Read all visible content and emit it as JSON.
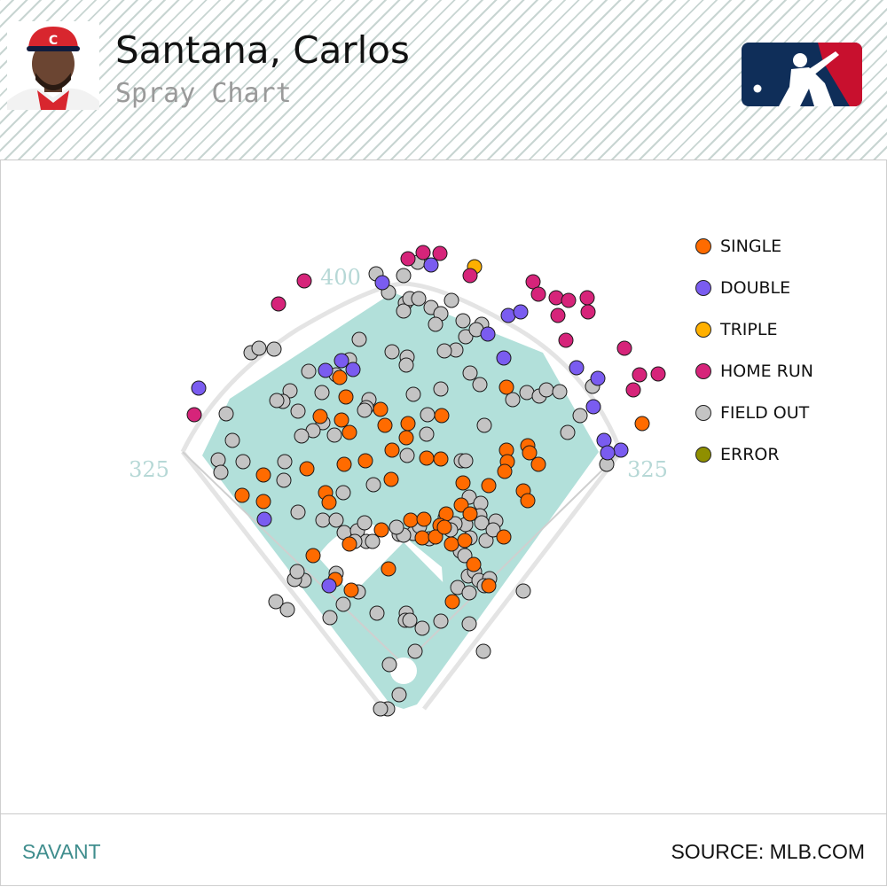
{
  "header": {
    "player_name": "Santana, Carlos",
    "subtitle": "Spray Chart",
    "logo": "mlb-logo",
    "photo": "player-headshot"
  },
  "footer": {
    "left_text": "SAVANT",
    "right_text": "SOURCE: MLB.COM"
  },
  "colors": {
    "field_fill": "#b2e0da",
    "infield_fill": "#ffffff",
    "single": "#ff6b00",
    "double": "#7a5cf0",
    "triple": "#ffb000",
    "home_run": "#d6247a",
    "field_out": "#c4c4c4",
    "error": "#8f8f00",
    "accent": "#3f8d8d"
  },
  "chart_data": {
    "type": "scatter",
    "title": "Spray Chart",
    "field_labels": {
      "left": "325",
      "center": "400",
      "right": "325"
    },
    "legend_placement": "top-right",
    "legend": [
      {
        "key": "single",
        "label": "SINGLE"
      },
      {
        "key": "double",
        "label": "DOUBLE"
      },
      {
        "key": "triple",
        "label": "TRIPLE"
      },
      {
        "key": "home_run",
        "label": "HOME RUN"
      },
      {
        "key": "field_out",
        "label": "FIELD OUT"
      },
      {
        "key": "error",
        "label": "ERROR"
      }
    ],
    "series": [
      {
        "key": "single",
        "points": [
          [
            383,
            426
          ],
          [
            390,
            448
          ],
          [
            429,
            462
          ],
          [
            385,
            474
          ],
          [
            361,
            470
          ],
          [
            394,
            488
          ],
          [
            434,
            480
          ],
          [
            460,
            478
          ],
          [
            458,
            494
          ],
          [
            442,
            508
          ],
          [
            412,
            520
          ],
          [
            346,
            529
          ],
          [
            297,
            536
          ],
          [
            273,
            559
          ],
          [
            297,
            566
          ],
          [
            367,
            556
          ],
          [
            371,
            567
          ],
          [
            441,
            541
          ],
          [
            388,
            524
          ],
          [
            481,
            517
          ],
          [
            497,
            518
          ],
          [
            498,
            469
          ],
          [
            571,
            437
          ],
          [
            571,
            508
          ],
          [
            572,
            521
          ],
          [
            595,
            503
          ],
          [
            597,
            511
          ],
          [
            607,
            524
          ],
          [
            569,
            532
          ],
          [
            551,
            548
          ],
          [
            590,
            554
          ],
          [
            595,
            565
          ],
          [
            522,
            545
          ],
          [
            520,
            570
          ],
          [
            503,
            580
          ],
          [
            463,
            587
          ],
          [
            478,
            586
          ],
          [
            496,
            593
          ],
          [
            476,
            607
          ],
          [
            491,
            606
          ],
          [
            509,
            614
          ],
          [
            501,
            595
          ],
          [
            530,
            580
          ],
          [
            568,
            606
          ],
          [
            524,
            610
          ],
          [
            430,
            598
          ],
          [
            394,
            614
          ],
          [
            353,
            627
          ],
          [
            378,
            654
          ],
          [
            396,
            666
          ],
          [
            438,
            642
          ],
          [
            534,
            637
          ],
          [
            551,
            661
          ],
          [
            510,
            679
          ],
          [
            724,
            478
          ]
        ]
      },
      {
        "key": "double",
        "points": [
          [
            224,
            438
          ],
          [
            298,
            586
          ],
          [
            367,
            418
          ],
          [
            385,
            407
          ],
          [
            398,
            417
          ],
          [
            371,
            661
          ],
          [
            431,
            319
          ],
          [
            486,
            299
          ],
          [
            550,
            377
          ],
          [
            568,
            404
          ],
          [
            573,
            356
          ],
          [
            587,
            352
          ],
          [
            650,
            415
          ],
          [
            674,
            427
          ],
          [
            669,
            459
          ],
          [
            681,
            497
          ],
          [
            700,
            508
          ],
          [
            685,
            511
          ]
        ]
      },
      {
        "key": "triple",
        "points": [
          [
            535,
            301
          ]
        ]
      },
      {
        "key": "home_run",
        "points": [
          [
            219,
            468
          ],
          [
            314,
            343
          ],
          [
            343,
            317
          ],
          [
            460,
            292
          ],
          [
            477,
            285
          ],
          [
            496,
            286
          ],
          [
            530,
            311
          ],
          [
            601,
            318
          ],
          [
            607,
            332
          ],
          [
            627,
            336
          ],
          [
            641,
            339
          ],
          [
            662,
            336
          ],
          [
            663,
            352
          ],
          [
            629,
            356
          ],
          [
            638,
            384
          ],
          [
            704,
            393
          ],
          [
            721,
            423
          ],
          [
            742,
            422
          ],
          [
            714,
            440
          ]
        ]
      },
      {
        "key": "field_out",
        "points": [
          [
            283,
            398
          ],
          [
            292,
            393
          ],
          [
            309,
            394
          ],
          [
            348,
            419
          ],
          [
            327,
            441
          ],
          [
            319,
            453
          ],
          [
            312,
            452
          ],
          [
            336,
            464
          ],
          [
            363,
            443
          ],
          [
            364,
            477
          ],
          [
            353,
            486
          ],
          [
            340,
            492
          ],
          [
            377,
            491
          ],
          [
            394,
            406
          ],
          [
            405,
            383
          ],
          [
            379,
            423
          ],
          [
            442,
            397
          ],
          [
            459,
            403
          ],
          [
            458,
            412
          ],
          [
            416,
            451
          ],
          [
            413,
            460
          ],
          [
            411,
            463
          ],
          [
            466,
            445
          ],
          [
            497,
            439
          ],
          [
            482,
            468
          ],
          [
            481,
            490
          ],
          [
            520,
            520
          ],
          [
            525,
            520
          ],
          [
            546,
            480
          ],
          [
            578,
            451
          ],
          [
            594,
            443
          ],
          [
            608,
            447
          ],
          [
            616,
            440
          ],
          [
            631,
            442
          ],
          [
            640,
            488
          ],
          [
            668,
            436
          ],
          [
            654,
            469
          ],
          [
            684,
            524
          ],
          [
            255,
            467
          ],
          [
            262,
            497
          ],
          [
            246,
            519
          ],
          [
            249,
            533
          ],
          [
            274,
            521
          ],
          [
            321,
            521
          ],
          [
            320,
            542
          ],
          [
            336,
            578
          ],
          [
            387,
            556
          ],
          [
            364,
            587
          ],
          [
            379,
            587
          ],
          [
            388,
            601
          ],
          [
            403,
            599
          ],
          [
            413,
            611
          ],
          [
            400,
            611
          ],
          [
            411,
            590
          ],
          [
            420,
            611
          ],
          [
            421,
            547
          ],
          [
            459,
            514
          ],
          [
            502,
            584
          ],
          [
            529,
            561
          ],
          [
            542,
            568
          ],
          [
            541,
            582
          ],
          [
            543,
            590
          ],
          [
            525,
            592
          ],
          [
            513,
            591
          ],
          [
            508,
            598
          ],
          [
            530,
            607
          ],
          [
            548,
            610
          ],
          [
            559,
            588
          ],
          [
            556,
            598
          ],
          [
            519,
            622
          ],
          [
            524,
            627
          ],
          [
            528,
            650
          ],
          [
            535,
            645
          ],
          [
            540,
            655
          ],
          [
            552,
            653
          ],
          [
            546,
            661
          ],
          [
            516,
            663
          ],
          [
            529,
            669
          ],
          [
            484,
            608
          ],
          [
            466,
            602
          ],
          [
            450,
            603
          ],
          [
            473,
            594
          ],
          [
            455,
            604
          ],
          [
            447,
            595
          ],
          [
            379,
            647
          ],
          [
            404,
            668
          ],
          [
            343,
            655
          ],
          [
            332,
            654
          ],
          [
            335,
            645
          ],
          [
            387,
            682
          ],
          [
            372,
            697
          ],
          [
            425,
            692
          ],
          [
            458,
            692
          ],
          [
            457,
            700
          ],
          [
            462,
            700
          ],
          [
            476,
            709
          ],
          [
            497,
            701
          ],
          [
            529,
            704
          ],
          [
            545,
            735
          ],
          [
            590,
            667
          ],
          [
            450,
            784
          ],
          [
            437,
            800
          ],
          [
            429,
            800
          ],
          [
            468,
            735
          ],
          [
            439,
            750
          ],
          [
            311,
            679
          ],
          [
            324,
            688
          ],
          [
            438,
            330
          ],
          [
            457,
            342
          ],
          [
            455,
            351
          ],
          [
            462,
            337
          ],
          [
            472,
            337
          ],
          [
            486,
            347
          ],
          [
            497,
            354
          ],
          [
            509,
            339
          ],
          [
            522,
            362
          ],
          [
            525,
            380
          ],
          [
            543,
            366
          ],
          [
            537,
            372
          ],
          [
            541,
            434
          ],
          [
            530,
            421
          ],
          [
            514,
            395
          ],
          [
            501,
            396
          ],
          [
            491,
            366
          ],
          [
            424,
            309
          ],
          [
            471,
            296
          ],
          [
            455,
            311
          ]
        ]
      },
      {
        "key": "error",
        "points": []
      }
    ]
  }
}
